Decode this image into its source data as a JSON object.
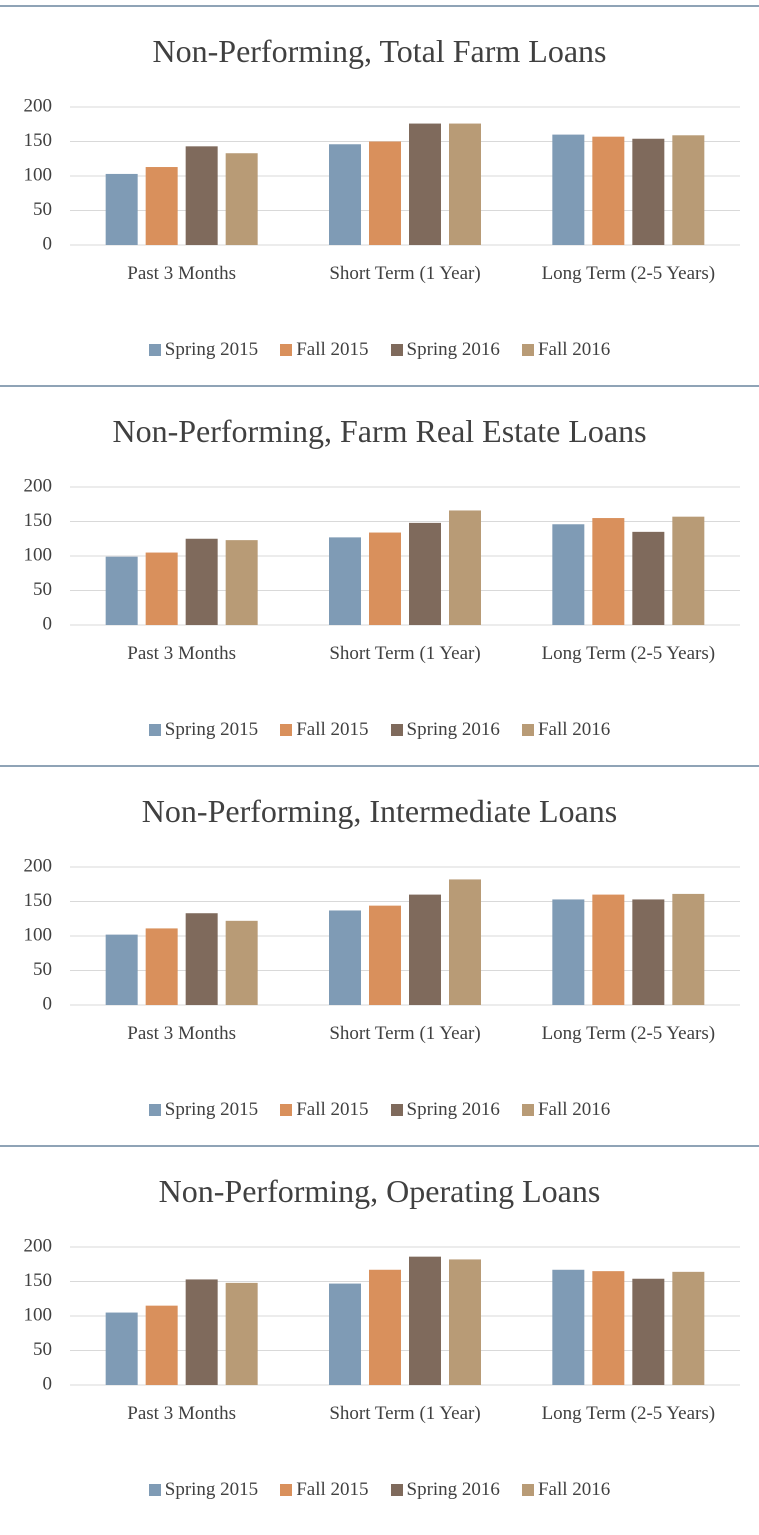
{
  "chart_data": [
    {
      "type": "bar",
      "title": "Non-Performing, Total Farm Loans",
      "categories": [
        "Past 3 Months",
        "Short Term (1 Year)",
        "Long Term (2-5 Years)"
      ],
      "series": [
        {
          "name": "Spring 2015",
          "color": "#7f9bb5",
          "values": [
            103,
            146,
            160
          ]
        },
        {
          "name": "Fall 2015",
          "color": "#d9905c",
          "values": [
            113,
            150,
            157
          ]
        },
        {
          "name": "Spring 2016",
          "color": "#7f6a5c",
          "values": [
            143,
            176,
            154
          ]
        },
        {
          "name": "Fall 2016",
          "color": "#b89b76",
          "values": [
            133,
            176,
            159
          ]
        }
      ],
      "ylim": [
        0,
        200
      ],
      "yticks": [
        0,
        50,
        100,
        150,
        200
      ],
      "grid": true,
      "legend": "bottom"
    },
    {
      "type": "bar",
      "title": "Non-Performing, Farm Real Estate Loans",
      "categories": [
        "Past 3 Months",
        "Short Term (1 Year)",
        "Long Term (2-5 Years)"
      ],
      "series": [
        {
          "name": "Spring 2015",
          "color": "#7f9bb5",
          "values": [
            99,
            127,
            146
          ]
        },
        {
          "name": "Fall 2015",
          "color": "#d9905c",
          "values": [
            105,
            134,
            155
          ]
        },
        {
          "name": "Spring 2016",
          "color": "#7f6a5c",
          "values": [
            125,
            148,
            135
          ]
        },
        {
          "name": "Fall 2016",
          "color": "#b89b76",
          "values": [
            123,
            166,
            157
          ]
        }
      ],
      "ylim": [
        0,
        200
      ],
      "yticks": [
        0,
        50,
        100,
        150,
        200
      ],
      "grid": true,
      "legend": "bottom"
    },
    {
      "type": "bar",
      "title": "Non-Performing, Intermediate Loans",
      "categories": [
        "Past 3 Months",
        "Short Term (1 Year)",
        "Long Term (2-5 Years)"
      ],
      "series": [
        {
          "name": "Spring 2015",
          "color": "#7f9bb5",
          "values": [
            102,
            137,
            153
          ]
        },
        {
          "name": "Fall 2015",
          "color": "#d9905c",
          "values": [
            111,
            144,
            160
          ]
        },
        {
          "name": "Spring 2016",
          "color": "#7f6a5c",
          "values": [
            133,
            160,
            153
          ]
        },
        {
          "name": "Fall 2016",
          "color": "#b89b76",
          "values": [
            122,
            182,
            161
          ]
        }
      ],
      "ylim": [
        0,
        200
      ],
      "yticks": [
        0,
        50,
        100,
        150,
        200
      ],
      "grid": true,
      "legend": "bottom"
    },
    {
      "type": "bar",
      "title": "Non-Performing, Operating Loans",
      "categories": [
        "Past 3 Months",
        "Short Term (1 Year)",
        "Long Term (2-5 Years)"
      ],
      "series": [
        {
          "name": "Spring 2015",
          "color": "#7f9bb5",
          "values": [
            105,
            147,
            167
          ]
        },
        {
          "name": "Fall 2015",
          "color": "#d9905c",
          "values": [
            115,
            167,
            165
          ]
        },
        {
          "name": "Spring 2016",
          "color": "#7f6a5c",
          "values": [
            153,
            186,
            154
          ]
        },
        {
          "name": "Fall 2016",
          "color": "#b89b76",
          "values": [
            148,
            182,
            164
          ]
        }
      ],
      "ylim": [
        0,
        200
      ],
      "yticks": [
        0,
        50,
        100,
        150,
        200
      ],
      "grid": true,
      "legend": "bottom"
    }
  ]
}
